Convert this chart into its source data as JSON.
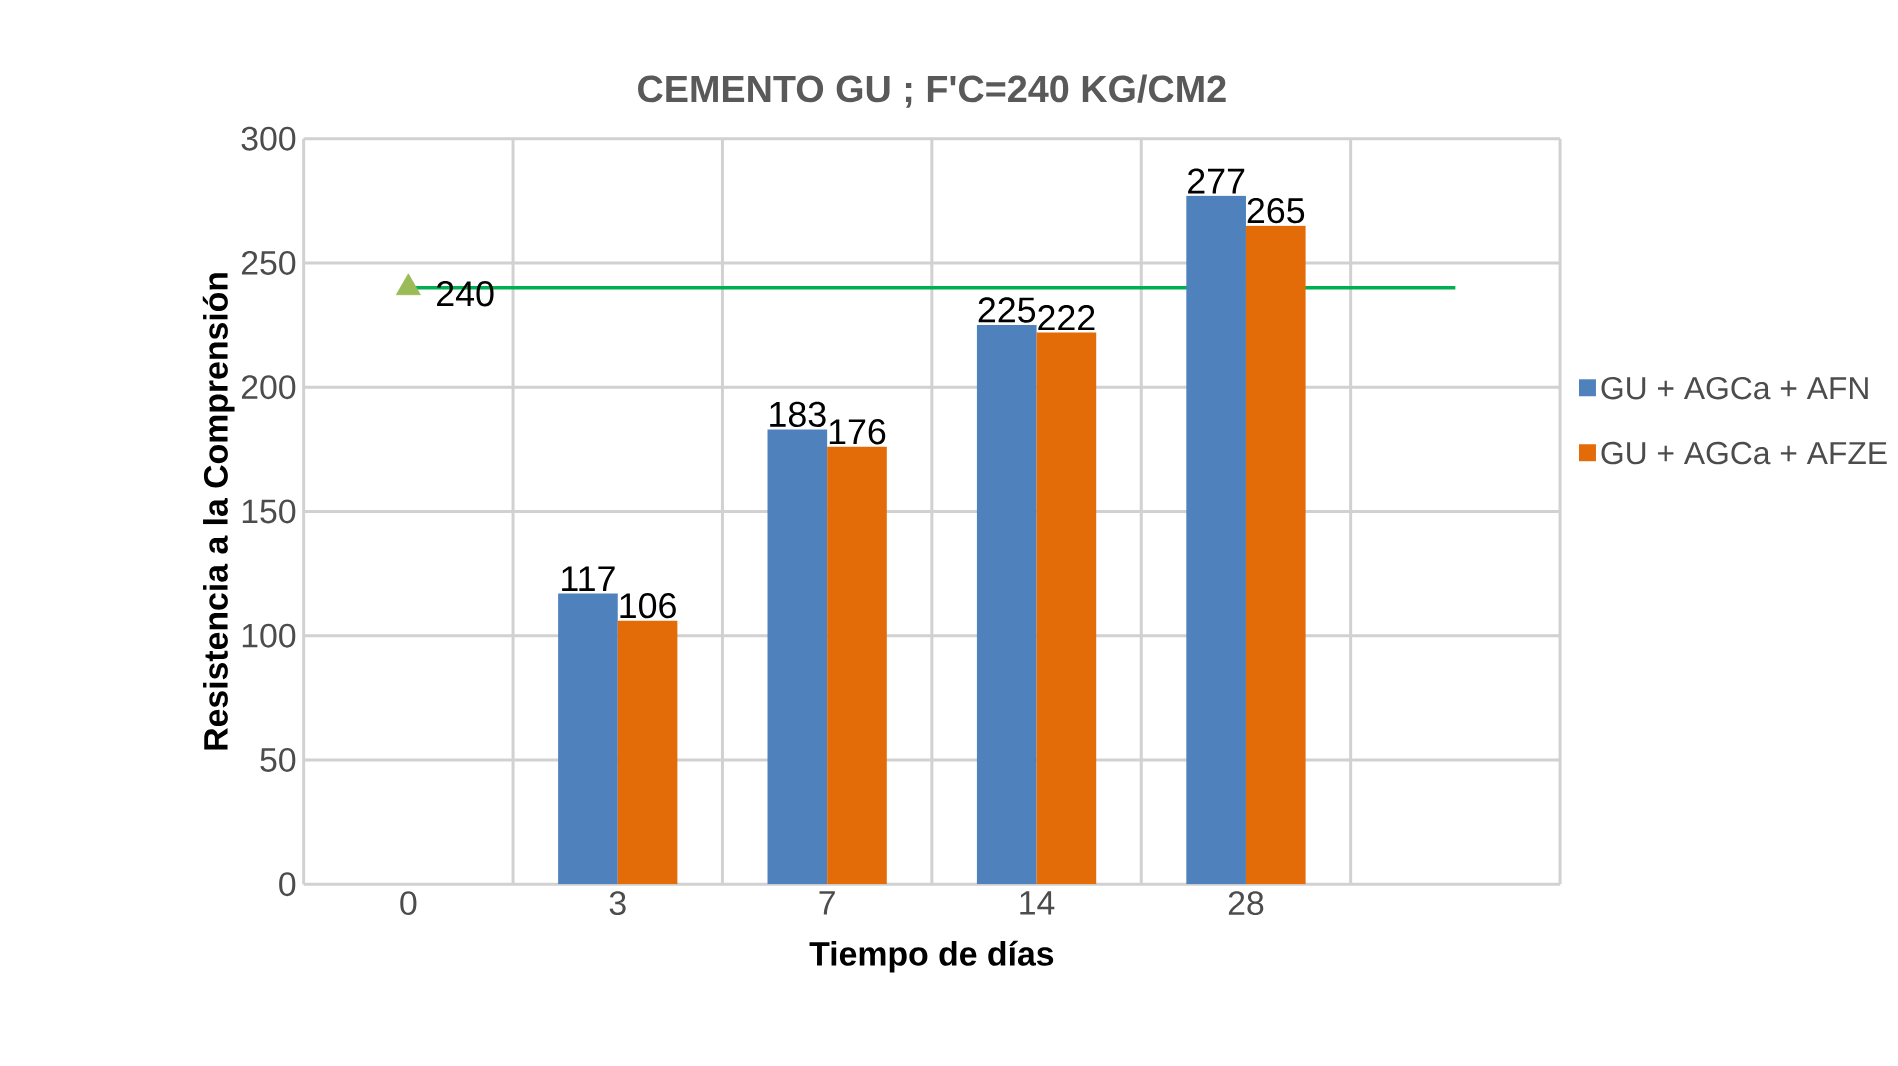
{
  "chart_data": {
    "type": "bar",
    "title": "CEMENTO GU ; F'C=240 KG/CM2",
    "xlabel": "Tiempo de días",
    "ylabel": "Resistencia a la Comprensión",
    "categories": [
      "0",
      "3",
      "7",
      "14",
      "28",
      null
    ],
    "series": [
      {
        "name": "GU + AGCa + AFN",
        "color": "#4f81bd",
        "values": [
          null,
          117,
          183,
          225,
          277,
          null
        ]
      },
      {
        "name": "GU + AGCa + AFZE",
        "color": "#e36c09",
        "values": [
          null,
          106,
          176,
          222,
          265,
          null
        ]
      },
      {
        "type": "scatter",
        "color": "#9bbb59",
        "marker": "triangle",
        "x": [
          "0"
        ],
        "values": [
          240
        ]
      }
    ],
    "ref_lines": [
      {
        "axis": "y",
        "value": 240,
        "color": "#00b050"
      }
    ],
    "ylim": [
      0,
      300
    ],
    "yticks": [
      0,
      50,
      100,
      150,
      200,
      250,
      300
    ],
    "grid": true,
    "legend": "right",
    "data_labels": true
  }
}
